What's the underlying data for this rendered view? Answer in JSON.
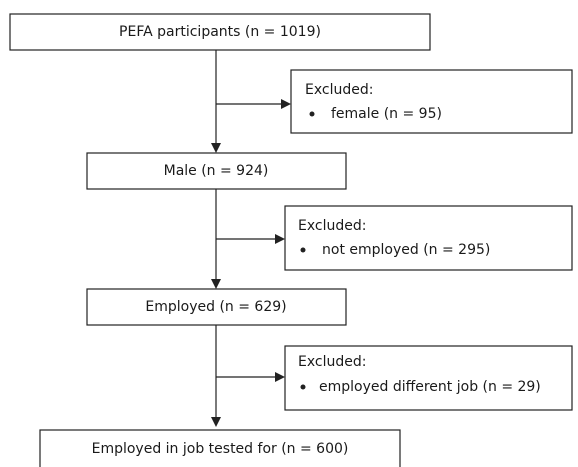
{
  "nodes": [
    {
      "label": "PEFA participants (n = 1019)"
    },
    {
      "label": "Male (n = 924)"
    },
    {
      "label": "Employed (n = 629)"
    },
    {
      "label": "Employed in job tested for (n = 600)"
    }
  ],
  "exclusions": [
    {
      "title": "Excluded:",
      "items": [
        "female (n = 95)"
      ]
    },
    {
      "title": "Excluded:",
      "items": [
        "not employed (n = 295)"
      ]
    },
    {
      "title": "Excluded:",
      "items": [
        "employed different job (n = 29)"
      ]
    }
  ]
}
